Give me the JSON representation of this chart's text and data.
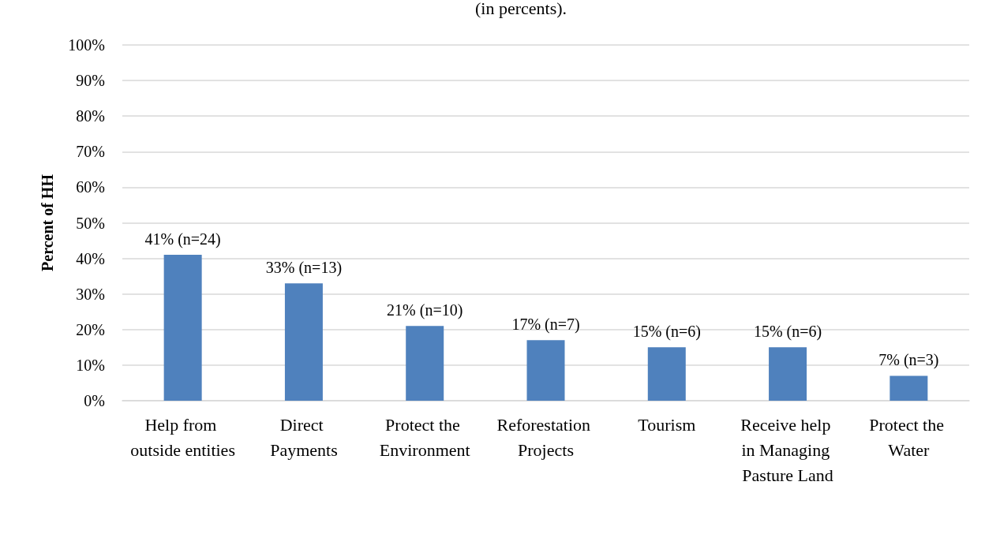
{
  "chart_data": {
    "type": "bar",
    "title": "(in percents).",
    "ylabel": "Percent of HH",
    "categories": [
      "Help from outside entities",
      "Direct Payments",
      "Protect the Environment",
      "Reforestation Projects",
      "Tourism",
      "Receive help in Managing Pasture Land",
      "Protect the Water"
    ],
    "values": [
      41,
      33,
      21,
      17,
      15,
      15,
      7
    ],
    "value_labels": [
      "41% (n=24)",
      "33% (n=13)",
      "21% (n=10)",
      "17% (n=7)",
      "15% (n=6)",
      "15% (n=6)",
      "7% (n=3)"
    ],
    "color": "#4f81bd",
    "ylim": [
      0,
      100
    ],
    "yticks": [
      {
        "value": 0,
        "label": "0%"
      },
      {
        "value": 10,
        "label": "10%"
      },
      {
        "value": 20,
        "label": "20%"
      },
      {
        "value": 30,
        "label": "30%"
      },
      {
        "value": 40,
        "label": "40%"
      },
      {
        "value": 50,
        "label": "50%"
      },
      {
        "value": 60,
        "label": "60%"
      },
      {
        "value": 70,
        "label": "70%"
      },
      {
        "value": 80,
        "label": "80%"
      },
      {
        "value": 90,
        "label": "90%"
      },
      {
        "value": 100,
        "label": "100%"
      }
    ],
    "grid": "y"
  }
}
